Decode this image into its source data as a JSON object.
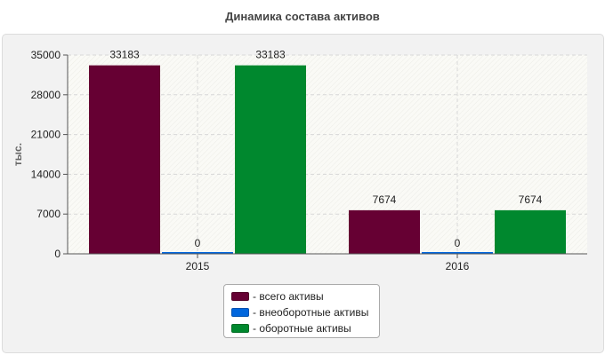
{
  "chart_data": {
    "type": "bar",
    "title": "Динамика состава активов",
    "ylabel": "тыс.",
    "xlabel": "",
    "categories": [
      "2015",
      "2016"
    ],
    "series": [
      {
        "name": "- всего активы",
        "color": "#660033",
        "values": [
          33183,
          7674
        ],
        "labels": [
          "33183",
          "7674"
        ]
      },
      {
        "name": "- внеоборотные активы",
        "color": "#0066dd",
        "values": [
          0,
          0
        ],
        "labels": [
          "0",
          "0"
        ]
      },
      {
        "name": "- оборотные активы",
        "color": "#00882e",
        "values": [
          33183,
          7674
        ],
        "labels": [
          "33183",
          "7674"
        ]
      }
    ],
    "ylim": [
      0,
      35000
    ],
    "yticks": [
      "0",
      "7000",
      "14000",
      "21000",
      "28000",
      "35000"
    ],
    "grid": true,
    "legend": "bottom-center"
  }
}
